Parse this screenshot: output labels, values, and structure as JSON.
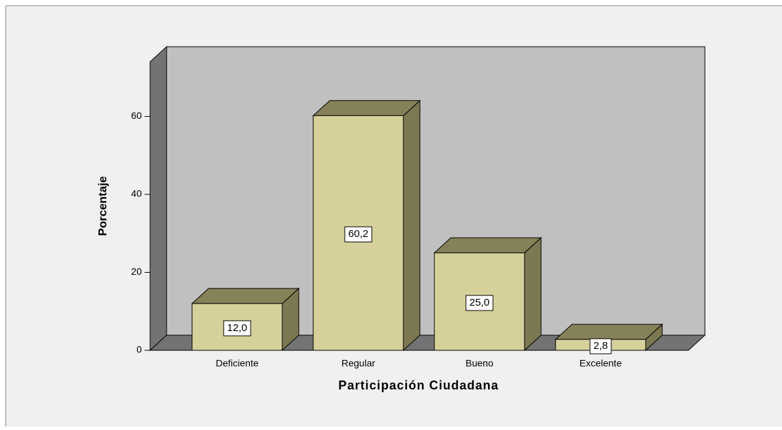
{
  "chart_data": {
    "type": "bar3d",
    "x_label": "Participación Ciudadana",
    "y_label": "Porcentaje",
    "categories": [
      "Deficiente",
      "Regular",
      "Bueno",
      "Excelente"
    ],
    "values": [
      12.0,
      60.2,
      25.0,
      2.8
    ],
    "value_labels": [
      "12,0",
      "60,2",
      "25,0",
      "2,8"
    ],
    "color": "#d6d19b",
    "ylim": [
      0,
      74
    ],
    "yticks": [
      0,
      20,
      40,
      60
    ],
    "grid": false
  }
}
